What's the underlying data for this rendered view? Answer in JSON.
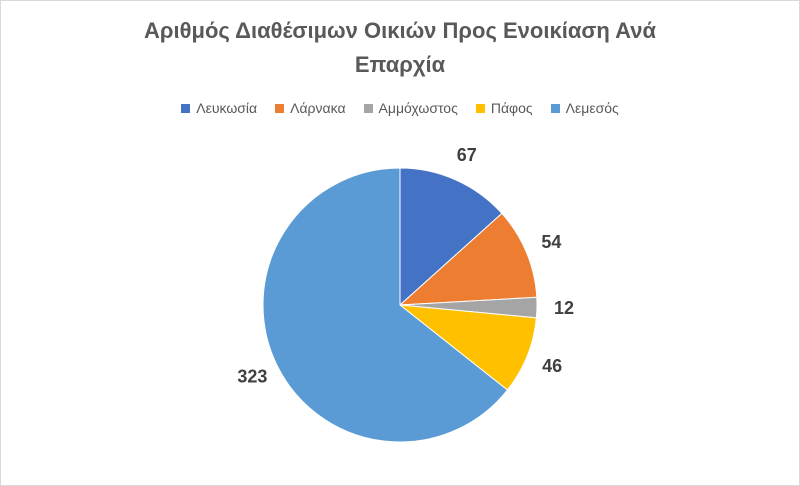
{
  "chart_data": {
    "type": "pie",
    "title": [
      "Αριθμός Διαθέσιμων Οικιών Προς Ενοικίαση Ανά",
      "Επαρχία"
    ],
    "categories": [
      "Λευκωσία",
      "Λάρνακα",
      "Αμμόχωστος",
      "Πάφος",
      "Λεμεσός"
    ],
    "values": [
      67,
      54,
      12,
      46,
      323
    ],
    "colors": [
      "#4472C4",
      "#ED7D31",
      "#A5A5A5",
      "#FFC000",
      "#5B9BD5"
    ],
    "legend_position": "top",
    "data_labels": "outside-end"
  }
}
